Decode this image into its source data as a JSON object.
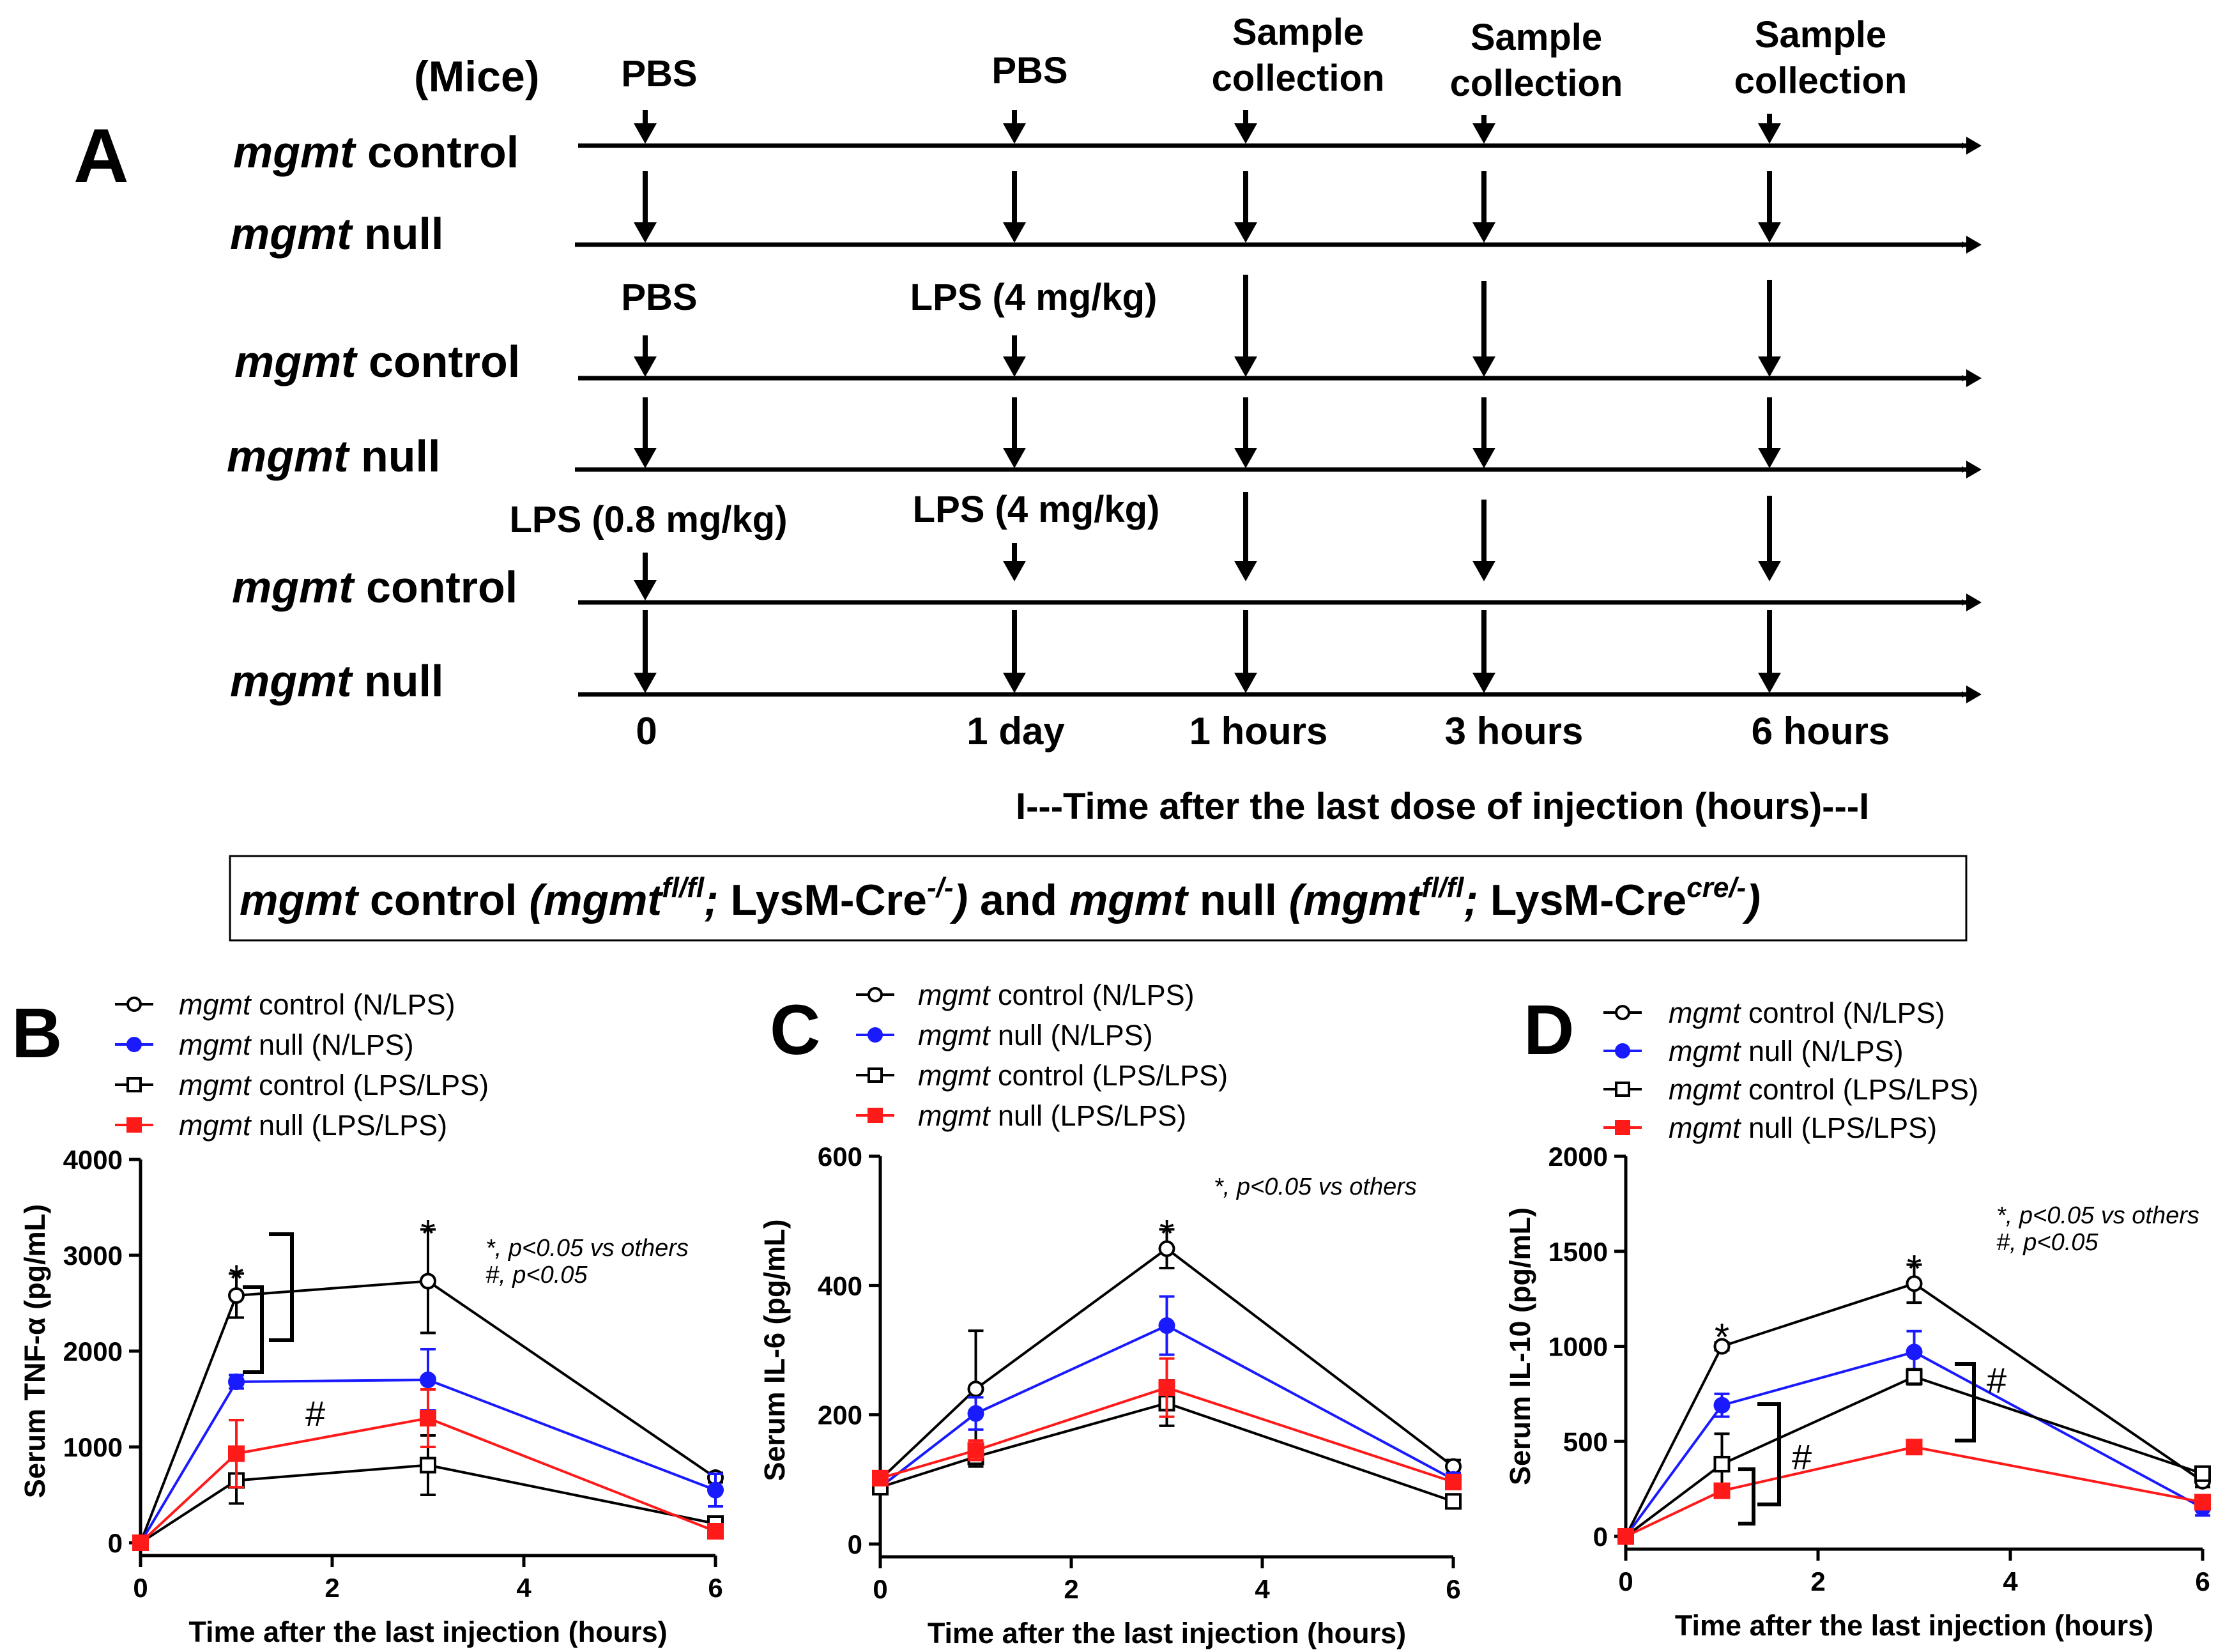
{
  "panelA": {
    "letter": "A",
    "mice_label": "(Mice)",
    "rows": [
      {
        "prefix": "mgmt",
        "suffix": " control"
      },
      {
        "prefix": "mgmt",
        "suffix": " null"
      },
      {
        "prefix": "mgmt",
        "suffix": " control"
      },
      {
        "prefix": "mgmt",
        "suffix": " null"
      },
      {
        "prefix": "mgmt",
        "suffix": " control"
      },
      {
        "prefix": "mgmt",
        "suffix": " null"
      }
    ],
    "treat_labels": [
      "PBS",
      "PBS",
      "PBS",
      "LPS (4 mg/kg)",
      "LPS (0.8 mg/kg)",
      "LPS (4 mg/kg)"
    ],
    "sample_label": [
      "Sample",
      "collection"
    ],
    "time_labels": [
      "0",
      "1 day",
      "1 hours",
      "3 hours",
      "6 hours"
    ],
    "time_caption": "I---Time after the last dose of injection (hours)---I",
    "box": {
      "t1": "mgmt",
      "t2": " control ",
      "t3": "(mgmt",
      "t4": "fl/fl",
      "t5": ";",
      "t6": " LysM-Cre",
      "t7": "-/-",
      "t8": ")",
      "t9": " and ",
      "t10": "mgmt",
      "t11": " null ",
      "t12": "(mgmt",
      "t13": "fl/fl",
      "t14": ";",
      "t15": " LysM-Cre",
      "t16": "cre/-",
      "t17": ")"
    }
  },
  "legend_entries": [
    {
      "prefix": "mgmt",
      "suffix": " control (N/LPS)"
    },
    {
      "prefix": "mgmt",
      "suffix": " null (N/LPS)"
    },
    {
      "prefix": "mgmt",
      "suffix": " control (LPS/LPS)"
    },
    {
      "prefix": "mgmt",
      "suffix": " null (LPS/LPS)"
    }
  ],
  "colors": {
    "black": "#000000",
    "blue": "#1a1aff",
    "red": "#ff1a1a"
  },
  "chart_data": [
    {
      "panel": "B",
      "type": "line",
      "xlabel": "Time after the last injection (hours)",
      "ylabel": "Serum TNF-α (pg/mL)",
      "xlim": [
        0,
        6
      ],
      "ylim": [
        0,
        4000
      ],
      "xticks": [
        "0",
        "2",
        "4",
        "6"
      ],
      "yticks": [
        "0",
        "1000",
        "2000",
        "3000",
        "4000"
      ],
      "annotation": [
        "*, p<0.05 vs others",
        "#, p<0.05"
      ],
      "star_marks": [
        {
          "x": 1,
          "y": 2820
        },
        {
          "x": 3,
          "y": 3290
        }
      ],
      "hash_mark": "#",
      "series": [
        {
          "name": "mgmt control (N/LPS)",
          "x": [
            0,
            1,
            3,
            6
          ],
          "y": [
            0,
            2580,
            2730,
            680
          ],
          "err": [
            0,
            230,
            540,
            50
          ]
        },
        {
          "name": "mgmt null (N/LPS)",
          "x": [
            0,
            1,
            3,
            6
          ],
          "y": [
            0,
            1680,
            1700,
            550
          ],
          "err": [
            0,
            70,
            320,
            170
          ]
        },
        {
          "name": "mgmt control (LPS/LPS)",
          "x": [
            0,
            1,
            3,
            6
          ],
          "y": [
            0,
            650,
            810,
            200
          ],
          "err": [
            0,
            240,
            310,
            40
          ]
        },
        {
          "name": "mgmt null (LPS/LPS)",
          "x": [
            0,
            1,
            3,
            6
          ],
          "y": [
            0,
            930,
            1300,
            120
          ],
          "err": [
            0,
            350,
            300,
            30
          ]
        }
      ]
    },
    {
      "panel": "C",
      "type": "line",
      "xlabel": "Time after the last injection (hours)",
      "ylabel": "Serum IL-6 (pg/mL)",
      "xlim": [
        0,
        6
      ],
      "ylim": [
        0,
        600
      ],
      "xticks": [
        "0",
        "2",
        "4",
        "6"
      ],
      "yticks": [
        "0",
        "200",
        "400",
        "600"
      ],
      "annotation": [
        "*, p<0.05 vs others"
      ],
      "star_marks": [
        {
          "x": 3,
          "y": 490
        }
      ],
      "series": [
        {
          "name": "mgmt control (N/LPS)",
          "x": [
            0,
            1,
            3,
            6
          ],
          "y": [
            100,
            240,
            457,
            120
          ],
          "err": [
            10,
            90,
            30,
            10
          ]
        },
        {
          "name": "mgmt null (N/LPS)",
          "x": [
            0,
            1,
            3,
            6
          ],
          "y": [
            88,
            202,
            338,
            100
          ],
          "err": [
            10,
            25,
            45,
            10
          ]
        },
        {
          "name": "mgmt control (LPS/LPS)",
          "x": [
            0,
            1,
            3,
            6
          ],
          "y": [
            88,
            135,
            218,
            66
          ],
          "err": [
            8,
            15,
            35,
            8
          ]
        },
        {
          "name": "mgmt null (LPS/LPS)",
          "x": [
            0,
            1,
            3,
            6
          ],
          "y": [
            102,
            145,
            242,
            96
          ],
          "err": [
            8,
            15,
            45,
            8
          ]
        }
      ]
    },
    {
      "panel": "D",
      "type": "line",
      "xlabel": "Time after the last injection (hours)",
      "ylabel": "Serum IL-10 (pg/mL)",
      "xlim": [
        0,
        6
      ],
      "ylim": [
        0,
        2000
      ],
      "xticks": [
        "0",
        "2",
        "4",
        "6"
      ],
      "yticks": [
        "0",
        "500",
        "1000",
        "1500",
        "2000"
      ],
      "annotation": [
        "*, p<0.05 vs others",
        "#, p<0.05"
      ],
      "star_marks": [
        {
          "x": 1,
          "y": 1080
        },
        {
          "x": 3,
          "y": 1440
        }
      ],
      "hash_mark": "#",
      "series": [
        {
          "name": "mgmt control (N/LPS)",
          "x": [
            0,
            1,
            3,
            6
          ],
          "y": [
            0,
            1000,
            1330,
            290
          ],
          "err": [
            0,
            20,
            100,
            30
          ]
        },
        {
          "name": "mgmt null (N/LPS)",
          "x": [
            0,
            1,
            3,
            6
          ],
          "y": [
            0,
            690,
            970,
            150
          ],
          "err": [
            0,
            60,
            110,
            40
          ]
        },
        {
          "name": "mgmt control (LPS/LPS)",
          "x": [
            0,
            1,
            3,
            6
          ],
          "y": [
            0,
            380,
            840,
            330
          ],
          "err": [
            0,
            160,
            40,
            20
          ]
        },
        {
          "name": "mgmt null (LPS/LPS)",
          "x": [
            0,
            1,
            3,
            6
          ],
          "y": [
            0,
            240,
            470,
            180
          ],
          "err": [
            0,
            30,
            20,
            15
          ]
        }
      ]
    }
  ]
}
